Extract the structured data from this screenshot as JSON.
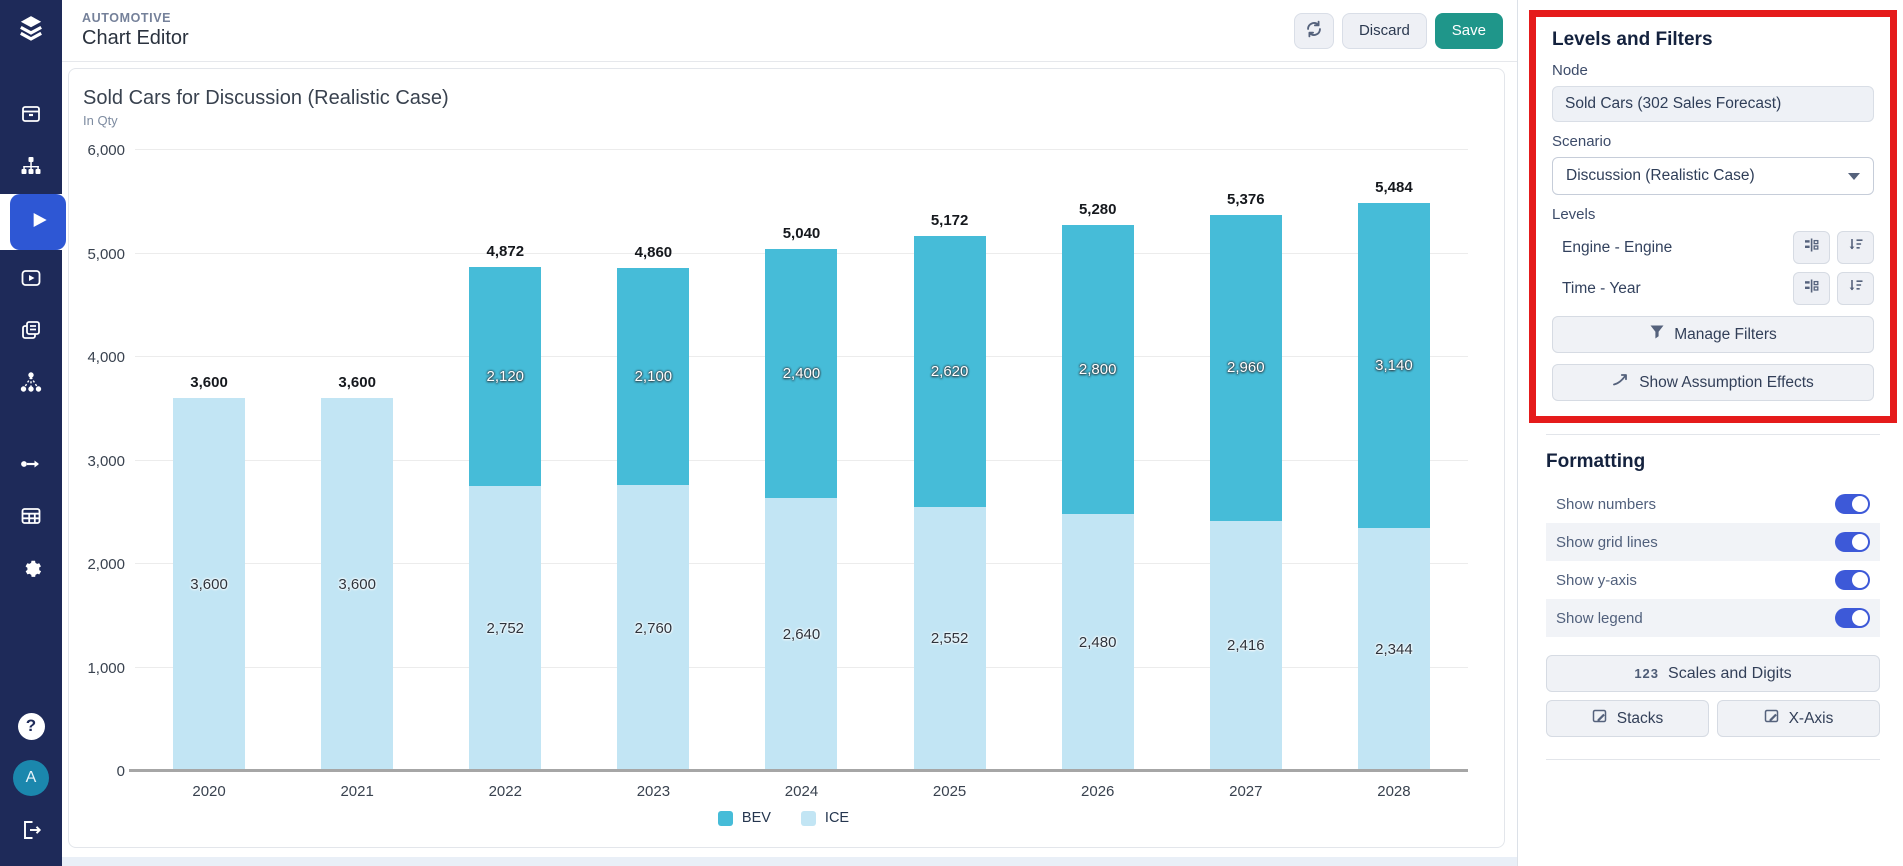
{
  "header": {
    "breadcrumb": "AUTOMOTIVE",
    "title": "Chart Editor",
    "discard_label": "Discard",
    "save_label": "Save"
  },
  "avatar": {
    "initial": "A"
  },
  "icons": {
    "help_glyph": "?"
  },
  "chart_data": {
    "type": "bar",
    "stacked": true,
    "title": "Sold Cars for Discussion (Realistic Case)",
    "subtitle": "In Qty",
    "categories": [
      "2020",
      "2021",
      "2022",
      "2023",
      "2024",
      "2025",
      "2026",
      "2027",
      "2028"
    ],
    "series": [
      {
        "name": "BEV",
        "color": "#46bcd8",
        "label_style": "light",
        "values": [
          0,
          0,
          2120,
          2100,
          2400,
          2620,
          2800,
          2960,
          3140
        ]
      },
      {
        "name": "ICE",
        "color": "#c2e5f4",
        "label_style": "dark",
        "values": [
          3600,
          3600,
          2752,
          2760,
          2640,
          2552,
          2480,
          2416,
          2344
        ]
      }
    ],
    "totals": [
      3600,
      3600,
      4872,
      4860,
      5040,
      5172,
      5280,
      5376,
      5484
    ],
    "ylim": [
      0,
      6000
    ],
    "ytick_step": 1000,
    "grid": true,
    "show_numbers": true,
    "legend_position": "bottom"
  },
  "panel": {
    "levels_filters": {
      "heading": "Levels and Filters",
      "node_label": "Node",
      "node_value": "Sold Cars (302 Sales Forecast)",
      "scenario_label": "Scenario",
      "scenario_value": "Discussion (Realistic Case)",
      "levels_label": "Levels",
      "levels": [
        {
          "name": "Engine - Engine"
        },
        {
          "name": "Time - Year"
        }
      ],
      "manage_filters_label": "Manage Filters",
      "show_assumption_label": "Show Assumption Effects"
    },
    "formatting": {
      "heading": "Formatting",
      "toggles": [
        {
          "label": "Show numbers",
          "on": true
        },
        {
          "label": "Show grid lines",
          "on": true
        },
        {
          "label": "Show y-axis",
          "on": true
        },
        {
          "label": "Show legend",
          "on": true
        }
      ],
      "scales_digits_icon": "123",
      "scales_digits_label": "Scales and Digits",
      "stacks_label": "Stacks",
      "xaxis_label": "X-Axis"
    }
  },
  "colors": {
    "sidebar": "#1e2a59",
    "active_nav": "#2e57d4",
    "save_button": "#1f968a",
    "highlight_border": "#e51b1b",
    "toggle_on": "#3d59d8",
    "bev": "#46bcd8",
    "ice": "#c2e5f4"
  }
}
